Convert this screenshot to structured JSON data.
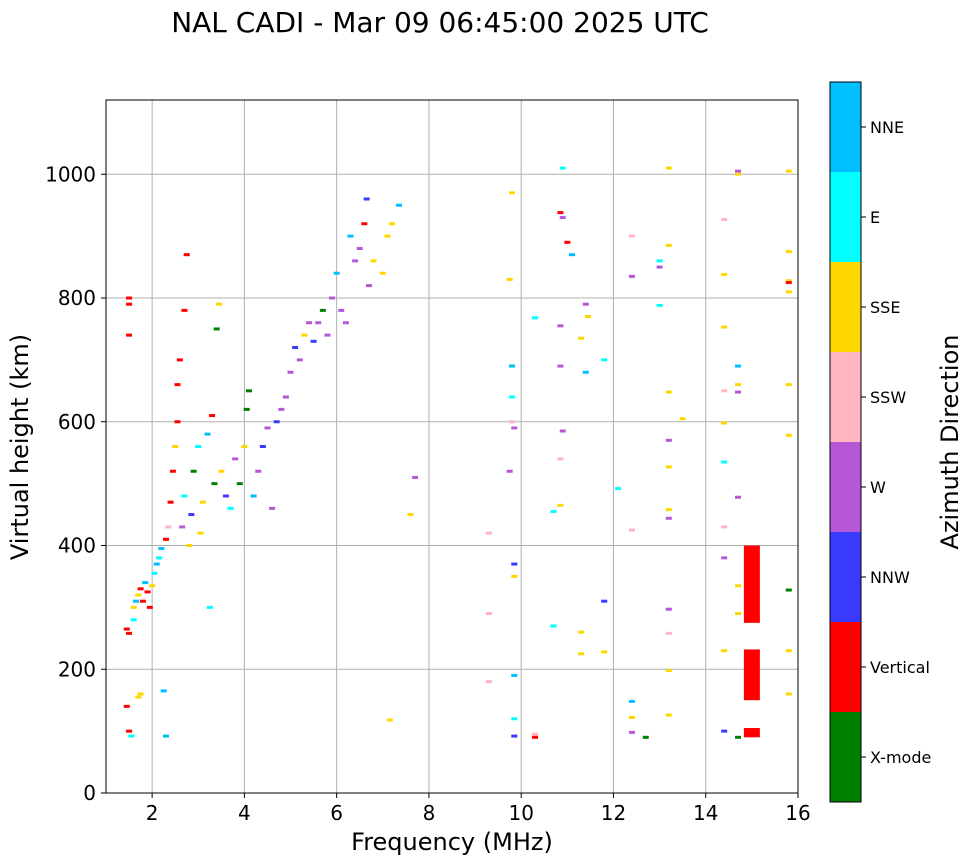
{
  "chart_data": {
    "type": "scatter",
    "title": "NAL CADI - Mar 09 06:45:00 2025 UTC",
    "xlabel": "Frequency (MHz)",
    "ylabel": "Virtual height (km)",
    "xlim": [
      1,
      16
    ],
    "ylim": [
      0,
      1120
    ],
    "xticks": [
      2,
      4,
      6,
      8,
      10,
      12,
      14,
      16
    ],
    "yticks": [
      0,
      200,
      400,
      600,
      800,
      1000
    ],
    "grid": true,
    "colorbar": {
      "label": "Azimuth Direction",
      "categories": [
        {
          "name": "X-mode",
          "color": "#008000"
        },
        {
          "name": "Vertical",
          "color": "#ff0000"
        },
        {
          "name": "NNW",
          "color": "#3a3aff"
        },
        {
          "name": "W",
          "color": "#b657d6"
        },
        {
          "name": "SSW",
          "color": "#ffb6c1"
        },
        {
          "name": "SSE",
          "color": "#ffd700"
        },
        {
          "name": "E",
          "color": "#00ffff"
        },
        {
          "name": "NNE",
          "color": "#00bfff"
        }
      ]
    },
    "points": [
      {
        "f": 1.45,
        "h": 265,
        "dir": "Vertical"
      },
      {
        "f": 1.5,
        "h": 258,
        "dir": "Vertical"
      },
      {
        "f": 1.5,
        "h": 100,
        "dir": "Vertical"
      },
      {
        "f": 1.45,
        "h": 140,
        "dir": "Vertical"
      },
      {
        "f": 1.5,
        "h": 740,
        "dir": "Vertical"
      },
      {
        "f": 1.5,
        "h": 800,
        "dir": "Vertical"
      },
      {
        "f": 1.5,
        "h": 790,
        "dir": "Vertical"
      },
      {
        "f": 1.55,
        "h": 92,
        "dir": "E"
      },
      {
        "f": 1.6,
        "h": 280,
        "dir": "E"
      },
      {
        "f": 1.6,
        "h": 300,
        "dir": "SSE"
      },
      {
        "f": 1.65,
        "h": 310,
        "dir": "NNE"
      },
      {
        "f": 1.7,
        "h": 155,
        "dir": "SSE"
      },
      {
        "f": 1.75,
        "h": 160,
        "dir": "SSE"
      },
      {
        "f": 1.7,
        "h": 320,
        "dir": "SSE"
      },
      {
        "f": 1.75,
        "h": 330,
        "dir": "Vertical"
      },
      {
        "f": 1.8,
        "h": 310,
        "dir": "Vertical"
      },
      {
        "f": 1.85,
        "h": 340,
        "dir": "NNE"
      },
      {
        "f": 1.9,
        "h": 325,
        "dir": "Vertical"
      },
      {
        "f": 1.95,
        "h": 300,
        "dir": "Vertical"
      },
      {
        "f": 2.0,
        "h": 335,
        "dir": "SSE"
      },
      {
        "f": 2.05,
        "h": 355,
        "dir": "E"
      },
      {
        "f": 2.1,
        "h": 370,
        "dir": "NNE"
      },
      {
        "f": 2.15,
        "h": 380,
        "dir": "E"
      },
      {
        "f": 2.2,
        "h": 395,
        "dir": "NNE"
      },
      {
        "f": 2.25,
        "h": 165,
        "dir": "NNE"
      },
      {
        "f": 2.3,
        "h": 92,
        "dir": "NNE"
      },
      {
        "f": 2.3,
        "h": 410,
        "dir": "Vertical"
      },
      {
        "f": 2.35,
        "h": 430,
        "dir": "SSW"
      },
      {
        "f": 2.4,
        "h": 470,
        "dir": "Vertical"
      },
      {
        "f": 2.45,
        "h": 520,
        "dir": "Vertical"
      },
      {
        "f": 2.5,
        "h": 560,
        "dir": "SSE"
      },
      {
        "f": 2.55,
        "h": 600,
        "dir": "Vertical"
      },
      {
        "f": 2.55,
        "h": 660,
        "dir": "Vertical"
      },
      {
        "f": 2.6,
        "h": 700,
        "dir": "Vertical"
      },
      {
        "f": 2.65,
        "h": 430,
        "dir": "W"
      },
      {
        "f": 2.7,
        "h": 480,
        "dir": "E"
      },
      {
        "f": 2.7,
        "h": 780,
        "dir": "Vertical"
      },
      {
        "f": 2.75,
        "h": 870,
        "dir": "Vertical"
      },
      {
        "f": 2.8,
        "h": 400,
        "dir": "SSE"
      },
      {
        "f": 2.85,
        "h": 450,
        "dir": "NNW"
      },
      {
        "f": 2.9,
        "h": 520,
        "dir": "X-mode"
      },
      {
        "f": 3.0,
        "h": 560,
        "dir": "E"
      },
      {
        "f": 3.05,
        "h": 420,
        "dir": "SSE"
      },
      {
        "f": 3.1,
        "h": 470,
        "dir": "SSE"
      },
      {
        "f": 3.2,
        "h": 580,
        "dir": "NNE"
      },
      {
        "f": 3.25,
        "h": 300,
        "dir": "E"
      },
      {
        "f": 3.3,
        "h": 610,
        "dir": "Vertical"
      },
      {
        "f": 3.35,
        "h": 500,
        "dir": "X-mode"
      },
      {
        "f": 3.4,
        "h": 750,
        "dir": "X-mode"
      },
      {
        "f": 3.45,
        "h": 790,
        "dir": "SSE"
      },
      {
        "f": 3.5,
        "h": 520,
        "dir": "SSE"
      },
      {
        "f": 3.6,
        "h": 480,
        "dir": "NNW"
      },
      {
        "f": 3.7,
        "h": 460,
        "dir": "E"
      },
      {
        "f": 3.8,
        "h": 540,
        "dir": "W"
      },
      {
        "f": 3.9,
        "h": 500,
        "dir": "X-mode"
      },
      {
        "f": 4.0,
        "h": 560,
        "dir": "SSE"
      },
      {
        "f": 4.05,
        "h": 620,
        "dir": "X-mode"
      },
      {
        "f": 4.1,
        "h": 650,
        "dir": "X-mode"
      },
      {
        "f": 4.2,
        "h": 480,
        "dir": "NNE"
      },
      {
        "f": 4.3,
        "h": 520,
        "dir": "W"
      },
      {
        "f": 4.4,
        "h": 560,
        "dir": "NNW"
      },
      {
        "f": 4.5,
        "h": 590,
        "dir": "W"
      },
      {
        "f": 4.6,
        "h": 460,
        "dir": "W"
      },
      {
        "f": 4.7,
        "h": 600,
        "dir": "NNW"
      },
      {
        "f": 4.8,
        "h": 620,
        "dir": "W"
      },
      {
        "f": 4.9,
        "h": 640,
        "dir": "W"
      },
      {
        "f": 5.0,
        "h": 680,
        "dir": "W"
      },
      {
        "f": 5.1,
        "h": 720,
        "dir": "NNW"
      },
      {
        "f": 5.2,
        "h": 700,
        "dir": "W"
      },
      {
        "f": 5.3,
        "h": 740,
        "dir": "SSE"
      },
      {
        "f": 5.4,
        "h": 760,
        "dir": "W"
      },
      {
        "f": 5.5,
        "h": 730,
        "dir": "NNW"
      },
      {
        "f": 5.6,
        "h": 760,
        "dir": "W"
      },
      {
        "f": 5.7,
        "h": 780,
        "dir": "X-mode"
      },
      {
        "f": 5.8,
        "h": 740,
        "dir": "W"
      },
      {
        "f": 5.9,
        "h": 800,
        "dir": "W"
      },
      {
        "f": 6.0,
        "h": 840,
        "dir": "NNE"
      },
      {
        "f": 6.1,
        "h": 780,
        "dir": "W"
      },
      {
        "f": 6.2,
        "h": 760,
        "dir": "W"
      },
      {
        "f": 6.3,
        "h": 900,
        "dir": "NNE"
      },
      {
        "f": 6.4,
        "h": 860,
        "dir": "W"
      },
      {
        "f": 6.5,
        "h": 880,
        "dir": "W"
      },
      {
        "f": 6.6,
        "h": 920,
        "dir": "Vertical"
      },
      {
        "f": 6.65,
        "h": 960,
        "dir": "NNW"
      },
      {
        "f": 6.7,
        "h": 820,
        "dir": "W"
      },
      {
        "f": 6.8,
        "h": 860,
        "dir": "SSE"
      },
      {
        "f": 7.0,
        "h": 840,
        "dir": "SSE"
      },
      {
        "f": 7.1,
        "h": 900,
        "dir": "SSE"
      },
      {
        "f": 7.2,
        "h": 920,
        "dir": "SSE"
      },
      {
        "f": 7.35,
        "h": 950,
        "dir": "NNE"
      },
      {
        "f": 7.15,
        "h": 118,
        "dir": "SSE"
      },
      {
        "f": 7.6,
        "h": 450,
        "dir": "SSE"
      },
      {
        "f": 7.7,
        "h": 510,
        "dir": "W"
      },
      {
        "f": 9.3,
        "h": 420,
        "dir": "SSW"
      },
      {
        "f": 9.3,
        "h": 290,
        "dir": "SSW"
      },
      {
        "f": 9.3,
        "h": 180,
        "dir": "SSW"
      },
      {
        "f": 9.75,
        "h": 830,
        "dir": "SSE"
      },
      {
        "f": 9.8,
        "h": 970,
        "dir": "SSE"
      },
      {
        "f": 9.8,
        "h": 690,
        "dir": "NNE"
      },
      {
        "f": 9.8,
        "h": 640,
        "dir": "E"
      },
      {
        "f": 9.8,
        "h": 600,
        "dir": "SSW"
      },
      {
        "f": 9.85,
        "h": 590,
        "dir": "W"
      },
      {
        "f": 9.75,
        "h": 520,
        "dir": "W"
      },
      {
        "f": 9.85,
        "h": 370,
        "dir": "NNW"
      },
      {
        "f": 9.85,
        "h": 350,
        "dir": "SSE"
      },
      {
        "f": 9.85,
        "h": 190,
        "dir": "NNE"
      },
      {
        "f": 9.85,
        "h": 120,
        "dir": "E"
      },
      {
        "f": 9.85,
        "h": 92,
        "dir": "NNW"
      },
      {
        "f": 10.3,
        "h": 95,
        "dir": "SSW"
      },
      {
        "f": 10.3,
        "h": 90,
        "dir": "Vertical"
      },
      {
        "f": 10.3,
        "h": 768,
        "dir": "E"
      },
      {
        "f": 10.7,
        "h": 455,
        "dir": "E"
      },
      {
        "f": 10.7,
        "h": 270,
        "dir": "E"
      },
      {
        "f": 10.9,
        "h": 1010,
        "dir": "E"
      },
      {
        "f": 10.85,
        "h": 938,
        "dir": "Vertical"
      },
      {
        "f": 10.9,
        "h": 930,
        "dir": "W"
      },
      {
        "f": 11.0,
        "h": 890,
        "dir": "Vertical"
      },
      {
        "f": 11.1,
        "h": 870,
        "dir": "NNE"
      },
      {
        "f": 10.85,
        "h": 755,
        "dir": "W"
      },
      {
        "f": 10.85,
        "h": 690,
        "dir": "W"
      },
      {
        "f": 10.9,
        "h": 585,
        "dir": "W"
      },
      {
        "f": 10.85,
        "h": 540,
        "dir": "SSW"
      },
      {
        "f": 10.85,
        "h": 465,
        "dir": "SSE"
      },
      {
        "f": 11.3,
        "h": 735,
        "dir": "SSE"
      },
      {
        "f": 11.3,
        "h": 260,
        "dir": "SSE"
      },
      {
        "f": 11.3,
        "h": 225,
        "dir": "SSE"
      },
      {
        "f": 11.4,
        "h": 790,
        "dir": "W"
      },
      {
        "f": 11.45,
        "h": 770,
        "dir": "SSE"
      },
      {
        "f": 11.4,
        "h": 680,
        "dir": "NNE"
      },
      {
        "f": 11.8,
        "h": 700,
        "dir": "E"
      },
      {
        "f": 11.8,
        "h": 310,
        "dir": "NNW"
      },
      {
        "f": 11.8,
        "h": 228,
        "dir": "SSE"
      },
      {
        "f": 12.1,
        "h": 492,
        "dir": "E"
      },
      {
        "f": 12.4,
        "h": 900,
        "dir": "SSW"
      },
      {
        "f": 12.4,
        "h": 835,
        "dir": "W"
      },
      {
        "f": 12.4,
        "h": 425,
        "dir": "SSW"
      },
      {
        "f": 12.4,
        "h": 148,
        "dir": "NNE"
      },
      {
        "f": 12.4,
        "h": 122,
        "dir": "SSE"
      },
      {
        "f": 12.4,
        "h": 98,
        "dir": "W"
      },
      {
        "f": 12.7,
        "h": 90,
        "dir": "X-mode"
      },
      {
        "f": 13.0,
        "h": 860,
        "dir": "E"
      },
      {
        "f": 13.0,
        "h": 850,
        "dir": "W"
      },
      {
        "f": 13.0,
        "h": 788,
        "dir": "E"
      },
      {
        "f": 13.2,
        "h": 1010,
        "dir": "SSE"
      },
      {
        "f": 13.2,
        "h": 885,
        "dir": "SSE"
      },
      {
        "f": 13.2,
        "h": 648,
        "dir": "SSE"
      },
      {
        "f": 13.2,
        "h": 570,
        "dir": "W"
      },
      {
        "f": 13.2,
        "h": 527,
        "dir": "SSE"
      },
      {
        "f": 13.2,
        "h": 458,
        "dir": "SSE"
      },
      {
        "f": 13.2,
        "h": 444,
        "dir": "W"
      },
      {
        "f": 13.2,
        "h": 297,
        "dir": "W"
      },
      {
        "f": 13.2,
        "h": 258,
        "dir": "SSW"
      },
      {
        "f": 13.2,
        "h": 198,
        "dir": "SSE"
      },
      {
        "f": 13.2,
        "h": 126,
        "dir": "SSE"
      },
      {
        "f": 13.5,
        "h": 605,
        "dir": "SSE"
      },
      {
        "f": 14.4,
        "h": 927,
        "dir": "SSW"
      },
      {
        "f": 14.4,
        "h": 838,
        "dir": "SSE"
      },
      {
        "f": 14.4,
        "h": 753,
        "dir": "SSE"
      },
      {
        "f": 14.4,
        "h": 650,
        "dir": "SSW"
      },
      {
        "f": 14.4,
        "h": 598,
        "dir": "SSE"
      },
      {
        "f": 14.4,
        "h": 535,
        "dir": "E"
      },
      {
        "f": 14.4,
        "h": 430,
        "dir": "SSW"
      },
      {
        "f": 14.4,
        "h": 380,
        "dir": "W"
      },
      {
        "f": 14.4,
        "h": 230,
        "dir": "SSE"
      },
      {
        "f": 14.4,
        "h": 100,
        "dir": "NNW"
      },
      {
        "f": 14.7,
        "h": 1005,
        "dir": "W"
      },
      {
        "f": 14.7,
        "h": 1000,
        "dir": "SSE"
      },
      {
        "f": 14.7,
        "h": 690,
        "dir": "NNE"
      },
      {
        "f": 14.7,
        "h": 660,
        "dir": "SSE"
      },
      {
        "f": 14.7,
        "h": 648,
        "dir": "W"
      },
      {
        "f": 14.7,
        "h": 478,
        "dir": "W"
      },
      {
        "f": 14.7,
        "h": 335,
        "dir": "SSE"
      },
      {
        "f": 14.7,
        "h": 290,
        "dir": "SSE"
      },
      {
        "f": 14.7,
        "h": 90,
        "dir": "X-mode"
      },
      {
        "f": 15.8,
        "h": 1005,
        "dir": "SSE"
      },
      {
        "f": 15.8,
        "h": 875,
        "dir": "SSE"
      },
      {
        "f": 15.8,
        "h": 828,
        "dir": "SSE"
      },
      {
        "f": 15.8,
        "h": 825,
        "dir": "Vertical"
      },
      {
        "f": 15.8,
        "h": 810,
        "dir": "SSE"
      },
      {
        "f": 15.8,
        "h": 660,
        "dir": "SSE"
      },
      {
        "f": 15.8,
        "h": 578,
        "dir": "SSE"
      },
      {
        "f": 15.8,
        "h": 328,
        "dir": "X-mode"
      },
      {
        "f": 15.8,
        "h": 230,
        "dir": "SSE"
      },
      {
        "f": 15.8,
        "h": 160,
        "dir": "SSE"
      }
    ],
    "bars": [
      {
        "f": 15.0,
        "h_start": 275,
        "h_end": 400,
        "dir": "Vertical"
      },
      {
        "f": 15.0,
        "h_start": 150,
        "h_end": 232,
        "dir": "Vertical"
      },
      {
        "f": 15.0,
        "h_start": 90,
        "h_end": 105,
        "dir": "Vertical"
      }
    ]
  }
}
